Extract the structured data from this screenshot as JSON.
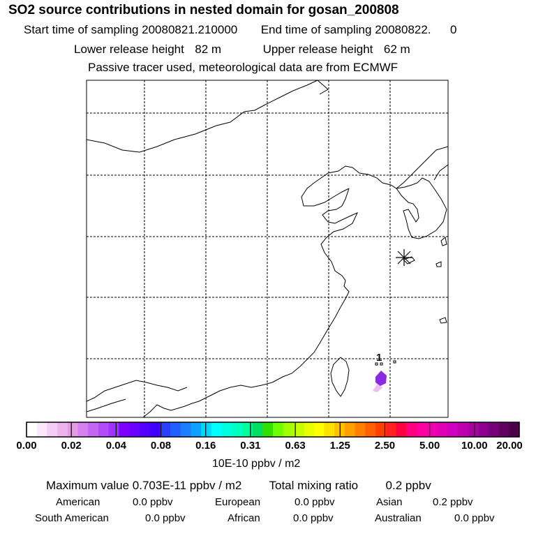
{
  "header": {
    "title": "SO2 source contributions in nested domain for gosan_200808",
    "start_label": "Start time of sampling",
    "start_value": "20080821.210000",
    "end_label": "End time of sampling",
    "end_value": "20080822.",
    "end_tail": "0",
    "lower_label": "Lower release height",
    "lower_value": "82 m",
    "upper_label": "Upper release height",
    "upper_value": "62 m",
    "note": "Passive tracer used, meteorological data are from ECMWF"
  },
  "map": {
    "source_marker_label": "1",
    "station_marker": "asterisk-icon",
    "plume_color_core": "#8a2be2",
    "plume_color_edge": "#e8a0f0"
  },
  "colorbar": {
    "tick_labels": [
      "0.00",
      "0.02",
      "0.04",
      "0.08",
      "0.16",
      "0.31",
      "0.63",
      "1.25",
      "2.50",
      "5.00",
      "10.00",
      "20.00"
    ],
    "colors": [
      "#ffffff",
      "#fbe6fb",
      "#f5ccf5",
      "#eeb2ee",
      "#e699e6",
      "#d67ff0",
      "#c466f5",
      "#b24cfa",
      "#a033ff",
      "#8000ff",
      "#6a00ff",
      "#5500ff",
      "#3f00ff",
      "#2a40ff",
      "#2060ff",
      "#1a80ff",
      "#10a0ff",
      "#00d8ff",
      "#00ffff",
      "#00ffe0",
      "#00ffc0",
      "#00ff9c",
      "#00e060",
      "#30e000",
      "#70ff00",
      "#a0ff00",
      "#c8ff00",
      "#e8ff00",
      "#ffff00",
      "#ffe000",
      "#ffc000",
      "#ffa000",
      "#ff8000",
      "#ff6000",
      "#ff4000",
      "#ff2020",
      "#ff0040",
      "#ff0080",
      "#ff00a0",
      "#f000b0",
      "#e000b8",
      "#d000c0",
      "#c000b0",
      "#a800a0",
      "#900090",
      "#780078",
      "#600060",
      "#4a004a"
    ],
    "units": "10E-10 ppbv / m2"
  },
  "summary": {
    "max_label": "Maximum value",
    "max_value": "0.703E-11 ppbv / m2",
    "total_label": "Total mixing ratio",
    "total_value": "0.2 ppbv",
    "regions": [
      {
        "name": "American",
        "value": "0.0 ppbv"
      },
      {
        "name": "European",
        "value": "0.0 ppbv"
      },
      {
        "name": "Asian",
        "value": "0.2 ppbv"
      },
      {
        "name": "South American",
        "value": "0.0 ppbv"
      },
      {
        "name": "African",
        "value": "0.0 ppbv"
      },
      {
        "name": "Australian",
        "value": "0.0 ppbv"
      }
    ]
  }
}
